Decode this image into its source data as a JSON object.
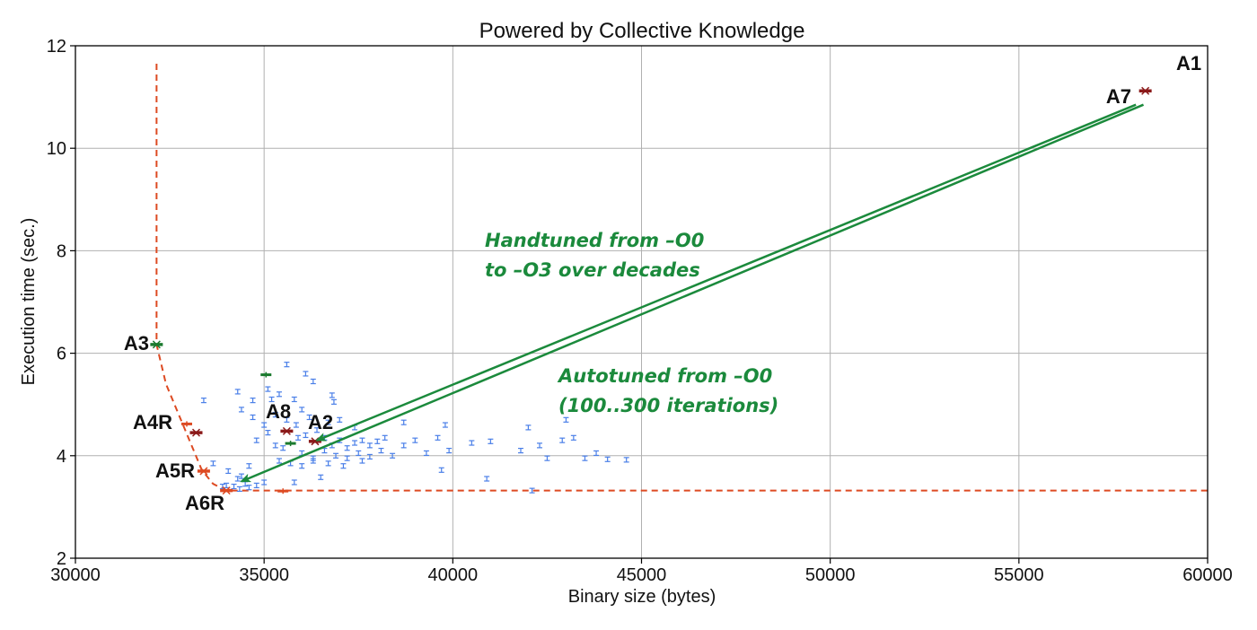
{
  "chart_data": {
    "type": "scatter",
    "title": "Powered by Collective Knowledge",
    "xlabel": "Binary size (bytes)",
    "ylabel": "Execution time (sec.)",
    "xlim": [
      30000,
      60000
    ],
    "ylim": [
      2,
      12
    ],
    "xticks": [
      30000,
      35000,
      40000,
      45000,
      50000,
      55000,
      60000
    ],
    "yticks": [
      2,
      4,
      6,
      8,
      10,
      12
    ],
    "grid": true,
    "colors": {
      "explored": "#4a7fe8",
      "pareto": "#dd4a22",
      "reference": "#8b1a1a",
      "green_points": "#1b7a2e",
      "arrows": "#1b8a3c"
    },
    "pareto_frontier": {
      "x": [
        32150,
        32150,
        32400,
        33350,
        33650,
        34000,
        60000
      ],
      "y": [
        11.65,
        6.17,
        5.4,
        3.72,
        3.45,
        3.32,
        3.32
      ]
    },
    "labeled_points": [
      {
        "label": "A1",
        "x": 58350,
        "y": 11.12,
        "color": "reference"
      },
      {
        "label": "A7",
        "x": 58350,
        "y": 11.12,
        "color": "reference"
      },
      {
        "label": "A3",
        "x": 32150,
        "y": 6.17,
        "color": "green_points"
      },
      {
        "label": "A4R",
        "x": 33200,
        "y": 4.45,
        "color": "reference"
      },
      {
        "label": "A5R",
        "x": 33400,
        "y": 3.7,
        "color": "pareto"
      },
      {
        "label": "A6R",
        "x": 34000,
        "y": 3.32,
        "color": "pareto"
      },
      {
        "label": "A8",
        "x": 35600,
        "y": 4.48,
        "color": "reference"
      },
      {
        "label": "A2",
        "x": 36350,
        "y": 4.28,
        "color": "reference"
      }
    ],
    "extra_points": [
      {
        "x": 35050,
        "y": 5.58,
        "color": "green_points"
      },
      {
        "x": 35700,
        "y": 4.24,
        "color": "green_points"
      },
      {
        "x": 32950,
        "y": 4.62,
        "color": "pareto"
      },
      {
        "x": 35500,
        "y": 3.31,
        "color": "pareto"
      }
    ],
    "explored_points": [
      [
        34500,
        3.45
      ],
      [
        34200,
        3.4
      ],
      [
        34000,
        3.42
      ],
      [
        33900,
        3.4
      ],
      [
        34800,
        3.42
      ],
      [
        35000,
        3.48
      ],
      [
        34350,
        3.35
      ],
      [
        34600,
        3.38
      ],
      [
        34300,
        3.55
      ],
      [
        33650,
        3.85
      ],
      [
        34050,
        3.7
      ],
      [
        34400,
        3.6
      ],
      [
        34600,
        3.8
      ],
      [
        33400,
        5.08
      ],
      [
        34700,
        5.08
      ],
      [
        35200,
        5.1
      ],
      [
        35400,
        5.2
      ],
      [
        35800,
        5.1
      ],
      [
        36800,
        5.18
      ],
      [
        35100,
        5.3
      ],
      [
        34300,
        5.25
      ],
      [
        36100,
        5.6
      ],
      [
        35600,
        5.78
      ],
      [
        36300,
        5.45
      ],
      [
        36850,
        5.05
      ],
      [
        34400,
        4.9
      ],
      [
        34700,
        4.75
      ],
      [
        35000,
        4.6
      ],
      [
        35300,
        4.8
      ],
      [
        35600,
        4.7
      ],
      [
        35850,
        4.6
      ],
      [
        36000,
        4.9
      ],
      [
        36200,
        4.75
      ],
      [
        34800,
        4.3
      ],
      [
        35100,
        4.45
      ],
      [
        35300,
        4.2
      ],
      [
        35500,
        4.15
      ],
      [
        35900,
        4.35
      ],
      [
        36100,
        4.4
      ],
      [
        36400,
        4.5
      ],
      [
        36600,
        4.35
      ],
      [
        36800,
        4.2
      ],
      [
        37000,
        4.3
      ],
      [
        37200,
        4.15
      ],
      [
        37400,
        4.25
      ],
      [
        37600,
        4.3
      ],
      [
        37800,
        4.2
      ],
      [
        38000,
        4.28
      ],
      [
        38200,
        4.35
      ],
      [
        36000,
        4.05
      ],
      [
        36300,
        3.95
      ],
      [
        36600,
        4.1
      ],
      [
        36900,
        4.0
      ],
      [
        37200,
        3.95
      ],
      [
        37500,
        4.05
      ],
      [
        37800,
        3.98
      ],
      [
        38100,
        4.1
      ],
      [
        38400,
        4.0
      ],
      [
        38700,
        4.2
      ],
      [
        39000,
        4.3
      ],
      [
        39300,
        4.05
      ],
      [
        39600,
        4.35
      ],
      [
        39900,
        4.1
      ],
      [
        35400,
        3.9
      ],
      [
        35700,
        3.85
      ],
      [
        36000,
        3.8
      ],
      [
        36300,
        3.9
      ],
      [
        36700,
        3.85
      ],
      [
        37100,
        3.8
      ],
      [
        37600,
        3.9
      ],
      [
        35800,
        3.48
      ],
      [
        36500,
        3.58
      ],
      [
        39700,
        3.72
      ],
      [
        40900,
        3.55
      ],
      [
        41800,
        4.1
      ],
      [
        42000,
        4.55
      ],
      [
        42300,
        4.2
      ],
      [
        42500,
        3.95
      ],
      [
        42900,
        4.3
      ],
      [
        43200,
        4.35
      ],
      [
        43500,
        3.95
      ],
      [
        43800,
        4.05
      ],
      [
        44100,
        3.93
      ],
      [
        44600,
        3.92
      ],
      [
        40500,
        4.25
      ],
      [
        41000,
        4.28
      ],
      [
        39800,
        4.6
      ],
      [
        38700,
        4.65
      ],
      [
        37400,
        4.55
      ],
      [
        37000,
        4.7
      ],
      [
        36700,
        4.65
      ],
      [
        43000,
        4.7
      ],
      [
        42100,
        3.32
      ]
    ],
    "arrows": [
      {
        "from": [
          58300,
          10.85
        ],
        "to": [
          34400,
          3.5
        ]
      },
      {
        "from": [
          58100,
          10.85
        ],
        "to": [
          36400,
          4.3
        ]
      }
    ],
    "annotations": [
      {
        "lines": [
          "Handtuned from –O0",
          "to –O3 over decades"
        ]
      },
      {
        "lines": [
          "Autotuned from –O0",
          "(100..300 iterations)"
        ]
      }
    ]
  }
}
